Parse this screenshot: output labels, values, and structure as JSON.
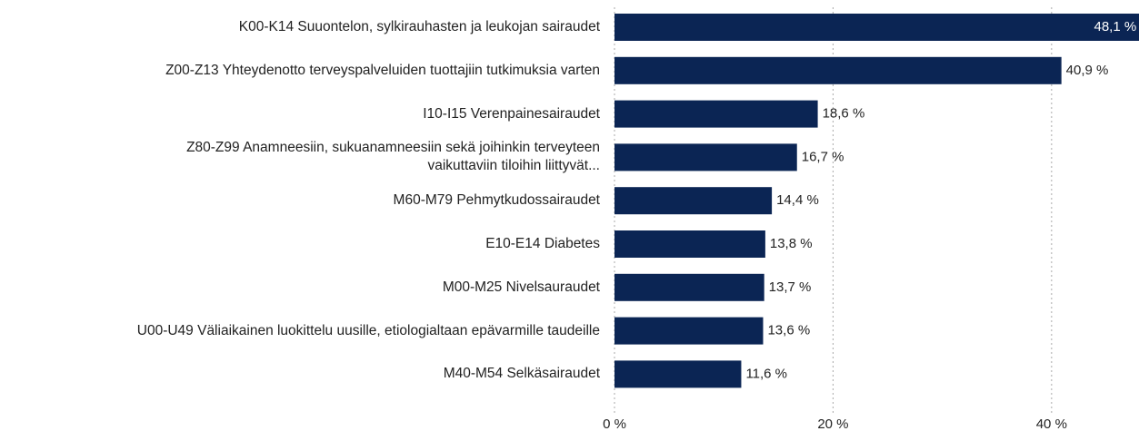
{
  "chart_data": {
    "type": "barh",
    "categories": [
      "K00-K14 Suuontelon, sylkirauhasten ja leukojan sairaudet",
      "Z00-Z13 Yhteydenotto terveyspalveluiden tuottajiin tutkimuksia varten",
      "I10-I15 Verenpainesairaudet",
      "Z80-Z99 Anamneesiin, sukuanamneesiin sekä joihinkin terveyteen\nvaikuttaviin tiloihin liittyvät...",
      "M60-M79 Pehmytkudossairaudet",
      "E10-E14 Diabetes",
      "M00-M25 Nivelsauraudet",
      "U00-U49 Väliaikainen luokittelu uusille, etiologialtaan epävarmille taudeille",
      "M40-M54 Selkäsairaudet"
    ],
    "values": [
      48.1,
      40.9,
      18.6,
      16.7,
      14.4,
      13.8,
      13.7,
      13.6,
      11.6
    ],
    "value_labels": [
      "48,1 %",
      "40,9 %",
      "18,6 %",
      "16,7 %",
      "14,4 %",
      "13,8 %",
      "13,7 %",
      "13,6 %",
      "11,6 %"
    ],
    "color": "#0b2554",
    "xlim": [
      0,
      48
    ],
    "xticks": [
      {
        "value": 0,
        "label": "0 %"
      },
      {
        "value": 20,
        "label": "20 %"
      },
      {
        "value": 40,
        "label": "40 %"
      }
    ],
    "grid": true
  }
}
